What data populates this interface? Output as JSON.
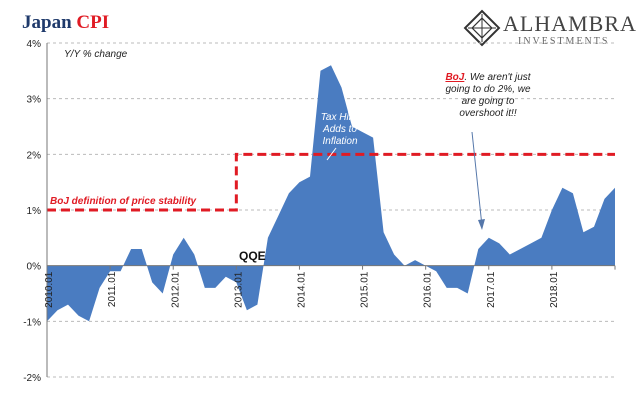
{
  "title": {
    "prefix": "Japan",
    "accent": "CPI"
  },
  "brand": {
    "name": "ALHAMBRA",
    "subtitle": "INVESTMENTS"
  },
  "colors": {
    "area": "#4a7cc1",
    "threshold": "#e01b24",
    "title_blue": "#1f3a6b"
  },
  "chart_data": {
    "type": "area",
    "ylabel": "Y/Y % change",
    "y_ticks": [
      "4%",
      "3%",
      "2%",
      "1%",
      "0%",
      "-1%",
      "-2%"
    ],
    "ylim": [
      -2,
      4
    ],
    "x_ticks": [
      "2010.01",
      "2011.01",
      "2012.01",
      "2013.01",
      "2014.01",
      "2015.01",
      "2016.01",
      "2017.01",
      "2018.01"
    ],
    "grid": true,
    "series": [
      {
        "x": [
          "2010-01",
          "2010-03",
          "2010-05",
          "2010-07",
          "2010-09",
          "2010-11",
          "2011-01",
          "2011-03",
          "2011-05",
          "2011-07",
          "2011-09",
          "2011-11",
          "2012-01",
          "2012-03",
          "2012-05",
          "2012-07",
          "2012-09",
          "2012-11",
          "2013-01",
          "2013-03",
          "2013-05",
          "2013-07",
          "2013-09",
          "2013-11",
          "2014-01",
          "2014-03",
          "2014-05",
          "2014-07",
          "2014-09",
          "2014-11",
          "2015-01",
          "2015-03",
          "2015-05",
          "2015-07",
          "2015-09",
          "2015-11",
          "2016-01",
          "2016-03",
          "2016-05",
          "2016-07",
          "2016-09",
          "2016-11",
          "2017-01",
          "2017-03",
          "2017-05",
          "2017-07",
          "2017-09",
          "2017-11",
          "2018-01",
          "2018-03",
          "2018-05",
          "2018-07",
          "2018-09",
          "2018-11",
          "2019-01"
        ],
        "y": [
          -1.0,
          -0.8,
          -0.7,
          -0.9,
          -1.0,
          -0.4,
          -0.1,
          -0.1,
          0.3,
          0.3,
          -0.3,
          -0.5,
          0.2,
          0.5,
          0.2,
          -0.4,
          -0.4,
          -0.2,
          -0.3,
          -0.8,
          -0.7,
          0.5,
          0.9,
          1.3,
          1.5,
          1.6,
          3.5,
          3.6,
          3.2,
          2.5,
          2.4,
          2.3,
          0.6,
          0.2,
          0.0,
          0.1,
          0.0,
          -0.1,
          -0.4,
          -0.4,
          -0.5,
          0.3,
          0.5,
          0.4,
          0.2,
          0.3,
          0.4,
          0.5,
          1.0,
          1.4,
          1.3,
          0.6,
          0.7,
          1.2,
          1.4
        ]
      }
    ],
    "price_stability_target": [
      {
        "from": "2010-01",
        "to": "2013-01",
        "value": 1.0
      },
      {
        "from": "2013-01",
        "to": "2019-01",
        "value": 2.0
      }
    ],
    "annotations": {
      "boj_def": "BoJ definition of price stability",
      "qqe": "QQE",
      "tax_hike": [
        "Tax Hike",
        "Adds to",
        "Inflation"
      ],
      "boj_quote_head": "BoJ",
      "boj_quote": [
        ". We aren't just",
        "going to do 2%, we",
        "are going to",
        "overshoot it!!"
      ]
    }
  }
}
